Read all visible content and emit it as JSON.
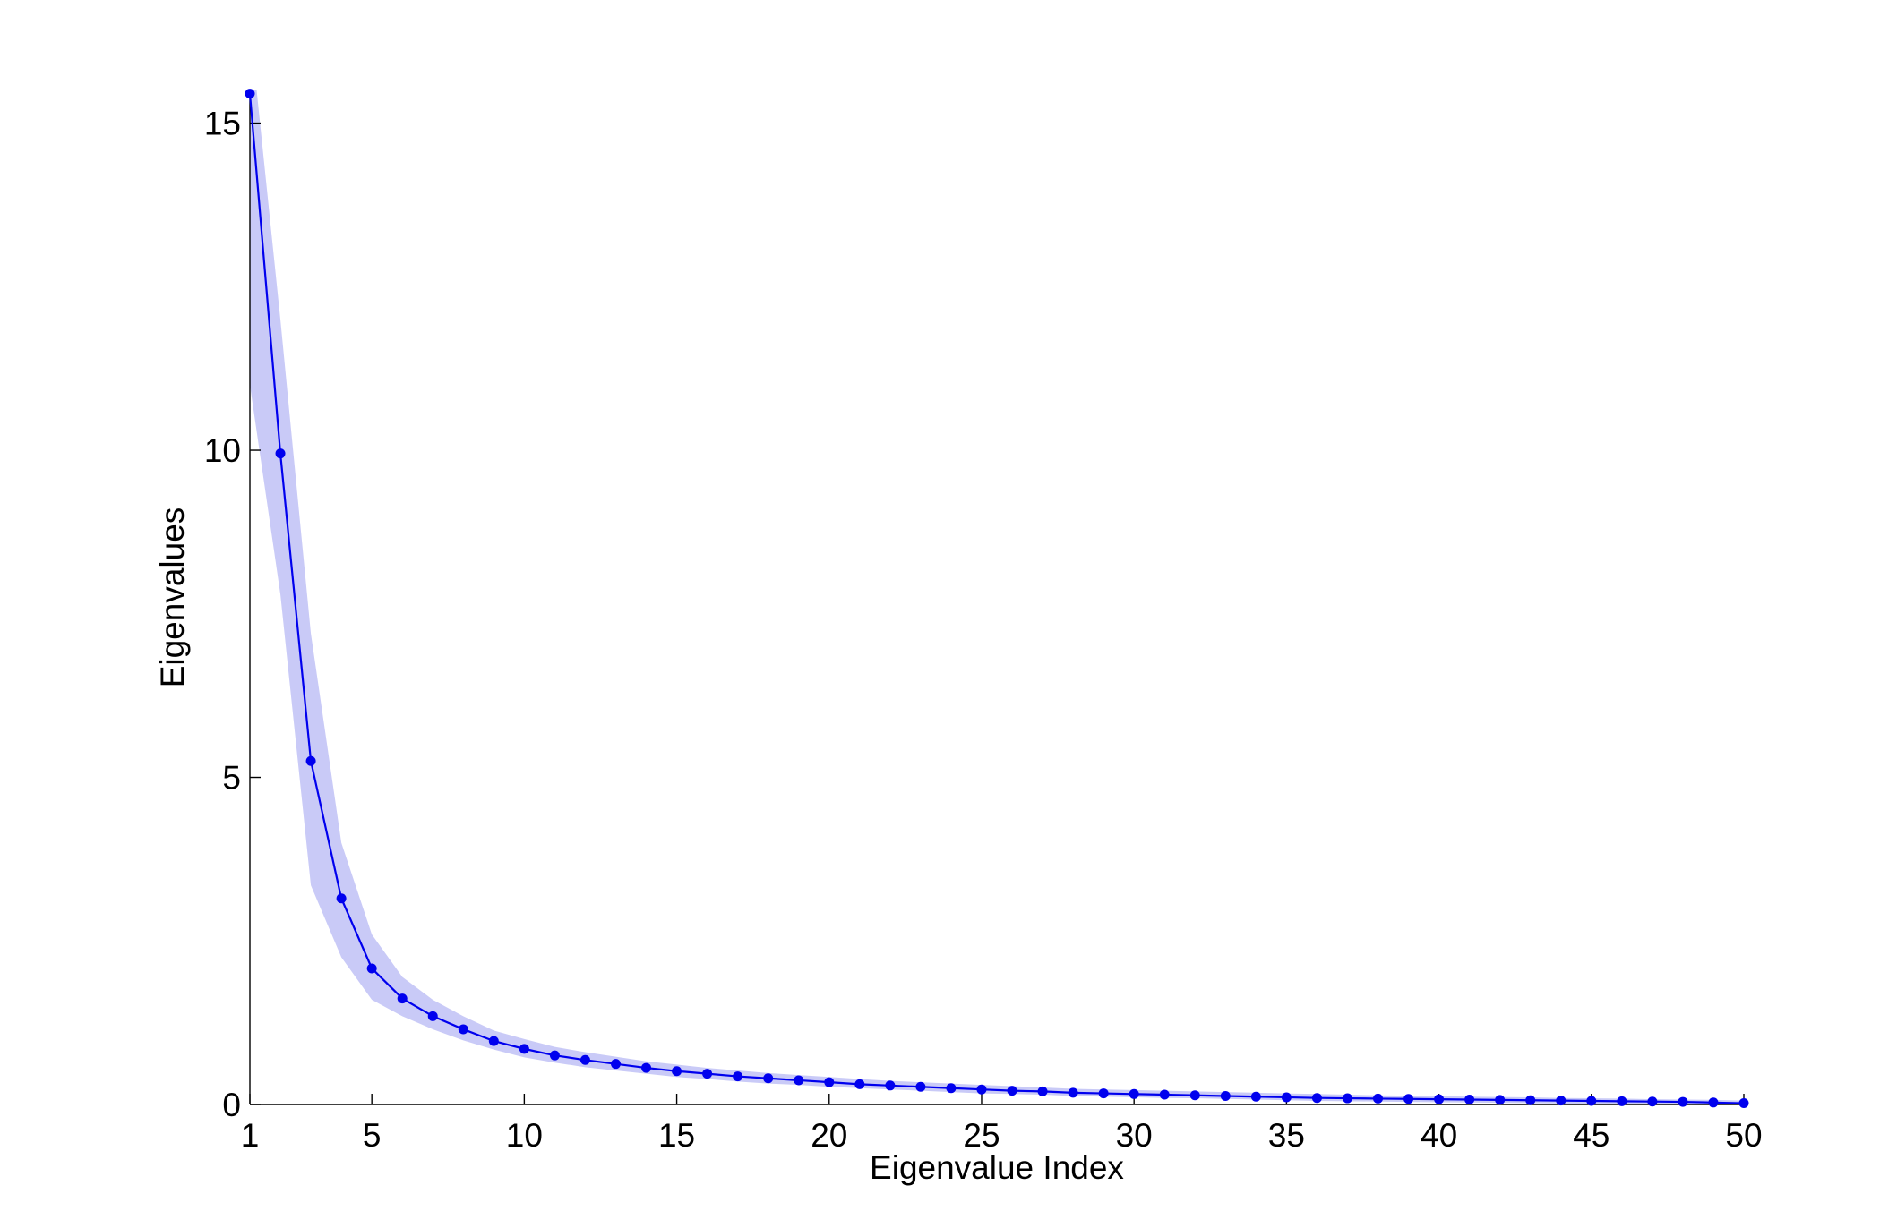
{
  "chart_data": {
    "type": "line",
    "xlabel": "Eigenvalue Index",
    "ylabel": "Eigenvalues",
    "xlim": [
      1,
      50
    ],
    "ylim": [
      0,
      15.5
    ],
    "xticks": [
      1,
      5,
      10,
      15,
      20,
      25,
      30,
      35,
      40,
      45,
      50
    ],
    "yticks": [
      0,
      5,
      10,
      15
    ],
    "grid": false,
    "colors": {
      "line": "#0000ee",
      "band": "#c9caf7"
    },
    "series": [
      {
        "x": [
          1,
          2,
          3,
          4,
          5,
          6,
          7,
          8,
          9,
          10,
          11,
          12,
          13,
          14,
          15,
          16,
          17,
          18,
          19,
          20,
          21,
          22,
          23,
          24,
          25,
          26,
          27,
          28,
          29,
          30,
          31,
          32,
          33,
          34,
          35,
          36,
          37,
          38,
          39,
          40,
          41,
          42,
          43,
          44,
          45,
          46,
          47,
          48,
          49,
          50
        ],
        "values": [
          15.45,
          9.95,
          5.25,
          3.15,
          2.08,
          1.62,
          1.35,
          1.15,
          0.97,
          0.85,
          0.75,
          0.68,
          0.62,
          0.56,
          0.51,
          0.47,
          0.43,
          0.4,
          0.37,
          0.34,
          0.31,
          0.29,
          0.27,
          0.25,
          0.23,
          0.21,
          0.2,
          0.18,
          0.17,
          0.16,
          0.15,
          0.14,
          0.13,
          0.12,
          0.11,
          0.1,
          0.095,
          0.09,
          0.085,
          0.08,
          0.075,
          0.07,
          0.065,
          0.06,
          0.055,
          0.05,
          0.045,
          0.04,
          0.03,
          0.02
        ],
        "band_upper": [
          16.5,
          12.0,
          7.2,
          4.0,
          2.6,
          1.95,
          1.6,
          1.35,
          1.13,
          1.0,
          0.88,
          0.8,
          0.73,
          0.66,
          0.61,
          0.56,
          0.52,
          0.48,
          0.45,
          0.42,
          0.39,
          0.36,
          0.34,
          0.32,
          0.3,
          0.28,
          0.26,
          0.24,
          0.23,
          0.22,
          0.21,
          0.2,
          0.19,
          0.18,
          0.17,
          0.16,
          0.15,
          0.14,
          0.135,
          0.13,
          0.12,
          0.115,
          0.11,
          0.1,
          0.095,
          0.09,
          0.08,
          0.075,
          0.07,
          0.06
        ],
        "band_lower": [
          11.0,
          7.8,
          3.35,
          2.25,
          1.6,
          1.35,
          1.15,
          0.98,
          0.84,
          0.72,
          0.64,
          0.57,
          0.52,
          0.47,
          0.42,
          0.39,
          0.35,
          0.32,
          0.3,
          0.27,
          0.25,
          0.23,
          0.21,
          0.19,
          0.17,
          0.16,
          0.15,
          0.13,
          0.12,
          0.11,
          0.1,
          0.095,
          0.085,
          0.075,
          0.065,
          0.055,
          0.05,
          0.045,
          0.04,
          0.035,
          0.03,
          0.025,
          0.02,
          0.015,
          0.01,
          0.008,
          0.006,
          0.004,
          0.002,
          0.0
        ]
      }
    ]
  }
}
